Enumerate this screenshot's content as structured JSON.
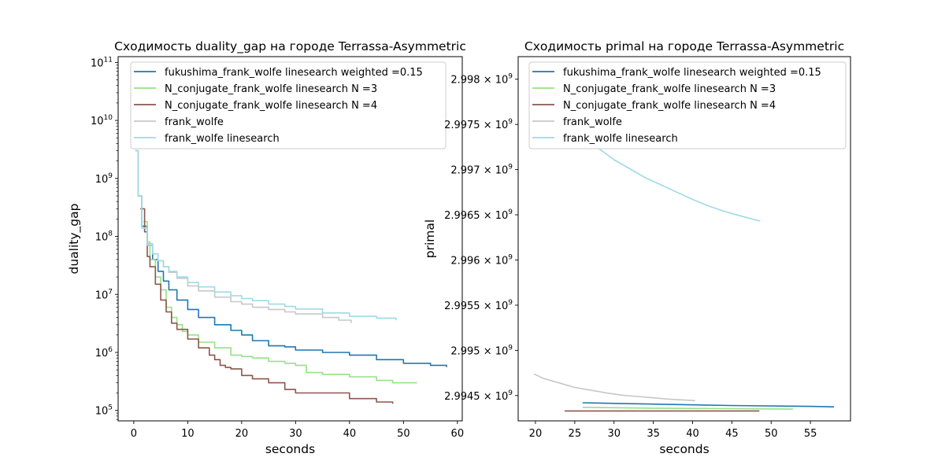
{
  "chart_data": [
    {
      "type": "line",
      "title": "Сходимость duality_gap на городе Terrassa-Asymmetric",
      "xlabel": "seconds",
      "ylabel": "duality_gap",
      "xlim": [
        -2.9,
        60.9
      ],
      "ylim_log10": [
        4.82,
        11.1
      ],
      "yscale": "log",
      "x_ticks": [
        0,
        10,
        20,
        30,
        40,
        50,
        60
      ],
      "y_ticks": [
        {
          "exp": 5,
          "base": "10",
          "sup": "5"
        },
        {
          "exp": 6,
          "base": "10",
          "sup": "6"
        },
        {
          "exp": 7,
          "base": "10",
          "sup": "7"
        },
        {
          "exp": 8,
          "base": "10",
          "sup": "8"
        },
        {
          "exp": 9,
          "base": "10",
          "sup": "9"
        },
        {
          "exp": 10,
          "base": "10",
          "sup": "10"
        },
        {
          "exp": 11,
          "base": "10",
          "sup": "11"
        }
      ],
      "legend": "top-right",
      "series": [
        {
          "name": "fukushima_frank_wolfe linesearch weighted =0.15",
          "color": "#1f77b4",
          "x": [
            0.3,
            0.8,
            1.5,
            2.5,
            3.5,
            4.5,
            5.5,
            6.5,
            8,
            10,
            12,
            15,
            18,
            20,
            22,
            25,
            28,
            30,
            35,
            40,
            45,
            50,
            55,
            58
          ],
          "y": [
            3000000000.0,
            500000000.0,
            150000000.0,
            70000000.0,
            40000000.0,
            25000000.0,
            17000000.0,
            12000000.0,
            8000000.0,
            5500000.0,
            4000000.0,
            3000000.0,
            2400000.0,
            2000000.0,
            1600000.0,
            1300000.0,
            1250000.0,
            1100000.0,
            1000000.0,
            900000.0,
            750000.0,
            650000.0,
            600000.0,
            560000.0
          ]
        },
        {
          "name": "N_conjugate_frank_wolfe linesearch N =3",
          "color": "#98df8a",
          "x": [
            1.8,
            2.5,
            3,
            4,
            5,
            6,
            7,
            8,
            9,
            10,
            12,
            15,
            18,
            20,
            22,
            25,
            28,
            30,
            32,
            35,
            40,
            45,
            48,
            50,
            52.5
          ],
          "y": [
            180000000.0,
            80000000.0,
            40000000.0,
            20000000.0,
            12000000.0,
            6000000.0,
            4000000.0,
            3000000.0,
            2300000.0,
            2000000.0,
            1500000.0,
            1200000.0,
            900000.0,
            850000.0,
            800000.0,
            700000.0,
            650000.0,
            600000.0,
            450000.0,
            420000.0,
            380000.0,
            330000.0,
            300000.0,
            300000.0,
            300000.0
          ]
        },
        {
          "name": "N_conjugate_frank_wolfe linesearch N =4",
          "color": "#8c564b",
          "x": [
            1.2,
            2,
            2.5,
            3,
            4,
            5,
            6,
            7,
            8,
            10,
            12,
            14,
            15,
            16,
            17,
            18,
            20,
            22,
            25,
            28,
            30,
            32,
            35,
            40,
            45,
            48
          ],
          "y": [
            300000000.0,
            120000000.0,
            45000000.0,
            30000000.0,
            15000000.0,
            8000000.0,
            5000000.0,
            3200000.0,
            2500000.0,
            1700000.0,
            1200000.0,
            900000.0,
            750000.0,
            600000.0,
            550000.0,
            520000.0,
            400000.0,
            350000.0,
            300000.0,
            230000.0,
            200000.0,
            200000.0,
            200000.0,
            160000.0,
            140000.0,
            130000.0
          ]
        },
        {
          "name": "frank_wolfe",
          "color": "#c7c7c7",
          "x": [
            0.3,
            0.8,
            1.5,
            2.5,
            3.5,
            4.5,
            5.5,
            6.5,
            8,
            10,
            12,
            15,
            18,
            20,
            22,
            25,
            28,
            30,
            35,
            38,
            40.3
          ],
          "y": [
            3000000000.0,
            500000000.0,
            140000000.0,
            70000000.0,
            50000000.0,
            38000000.0,
            30000000.0,
            24000000.0,
            19000000.0,
            14000000.0,
            11500000.0,
            9000000.0,
            7500000.0,
            6800000.0,
            6000000.0,
            5500000.0,
            5000000.0,
            4600000.0,
            4000000.0,
            3600000.0,
            3200000.0
          ]
        },
        {
          "name": "frank_wolfe linesearch",
          "color": "#9edae5",
          "x": [
            0.3,
            0.8,
            1.5,
            2.5,
            3.5,
            4.5,
            5.5,
            6.5,
            8,
            10,
            12,
            15,
            18,
            20,
            22,
            25,
            28,
            30,
            35,
            40,
            45,
            48.6
          ],
          "y": [
            3000000000.0,
            500000000.0,
            140000000.0,
            75000000.0,
            50000000.0,
            38000000.0,
            30000000.0,
            25000000.0,
            20000000.0,
            16000000.0,
            13500000.0,
            11000000.0,
            9500000.0,
            8500000.0,
            7800000.0,
            6800000.0,
            6200000.0,
            5600000.0,
            4800000.0,
            4200000.0,
            3900000.0,
            3600000.0
          ]
        }
      ]
    },
    {
      "type": "line",
      "title": "Сходимость primal на городе Terrassa-Asymmetric",
      "xlabel": "seconds",
      "ylabel": "primal",
      "xlim": [
        17.8,
        60.1
      ],
      "ylim": [
        2994220000.0,
        2998250000.0
      ],
      "yscale": "linear",
      "x_ticks": [
        20,
        25,
        30,
        35,
        40,
        45,
        50,
        55
      ],
      "y_ticks": [
        {
          "value": 2994500000.0,
          "base": "2.9945 × 10",
          "sup": "9"
        },
        {
          "value": 2995000000.0,
          "base": "2.995 × 10",
          "sup": "9"
        },
        {
          "value": 2995500000.0,
          "base": "2.9955 × 10",
          "sup": "9"
        },
        {
          "value": 2996000000.0,
          "base": "2.996 × 10",
          "sup": "9"
        },
        {
          "value": 2996500000.0,
          "base": "2.9965 × 10",
          "sup": "9"
        },
        {
          "value": 2997000000.0,
          "base": "2.997 × 10",
          "sup": "9"
        },
        {
          "value": 2997500000.0,
          "base": "2.9975 × 10",
          "sup": "9"
        },
        {
          "value": 2998000000.0,
          "base": "2.998 × 10",
          "sup": "9"
        }
      ],
      "legend": "top-right",
      "series": [
        {
          "name": "fukushima_frank_wolfe linesearch weighted =0.15",
          "color": "#1f77b4",
          "x": [
            26,
            35,
            45,
            55,
            58
          ],
          "y": [
            2994420000.0,
            2994405000.0,
            2994390000.0,
            2994380000.0,
            2994375000.0
          ]
        },
        {
          "name": "N_conjugate_frank_wolfe linesearch N =3",
          "color": "#98df8a",
          "x": [
            26,
            35,
            45,
            52.8
          ],
          "y": [
            2994370000.0,
            2994360000.0,
            2994355000.0,
            2994350000.0
          ]
        },
        {
          "name": "N_conjugate_frank_wolfe linesearch N =4",
          "color": "#8c564b",
          "x": [
            23.7,
            30,
            40,
            48.5
          ],
          "y": [
            2994330000.0,
            2994330000.0,
            2994330000.0,
            2994330000.0
          ]
        },
        {
          "name": "frank_wolfe",
          "color": "#c7c7c7",
          "x": [
            19.8,
            21,
            23,
            25,
            27,
            29,
            31,
            33,
            35,
            37,
            39,
            40.3
          ],
          "y": [
            2994740000.0,
            2994690000.0,
            2994640000.0,
            2994590000.0,
            2994560000.0,
            2994530000.0,
            2994505000.0,
            2994490000.0,
            2994475000.0,
            2994460000.0,
            2994450000.0,
            2994445000.0
          ]
        },
        {
          "name": "frank_wolfe linesearch",
          "color": "#9edae5",
          "x": [
            27.5,
            30,
            32,
            34,
            36,
            38,
            40,
            42,
            44,
            46,
            48.6
          ],
          "y": [
            2997270000.0,
            2997110000.0,
            2997010000.0,
            2996910000.0,
            2996830000.0,
            2996750000.0,
            2996670000.0,
            2996600000.0,
            2996540000.0,
            2996490000.0,
            2996430000.0
          ]
        }
      ]
    }
  ]
}
